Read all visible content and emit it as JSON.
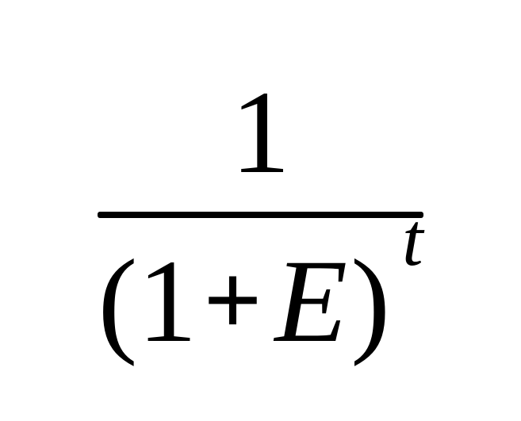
{
  "formula": {
    "type": "fraction",
    "numerator": "1",
    "denominator": {
      "open_paren": "(",
      "term1": "1",
      "operator": "+",
      "term2": "E",
      "close_paren": ")",
      "exponent": "t"
    },
    "font_family": "Times New Roman",
    "font_color": "#000000",
    "background_color": "#ffffff",
    "numerator_fontsize": 150,
    "denominator_fontsize": 150,
    "exponent_fontsize": 95,
    "bar_thickness": 8,
    "italic_vars": [
      "E",
      "t"
    ]
  }
}
